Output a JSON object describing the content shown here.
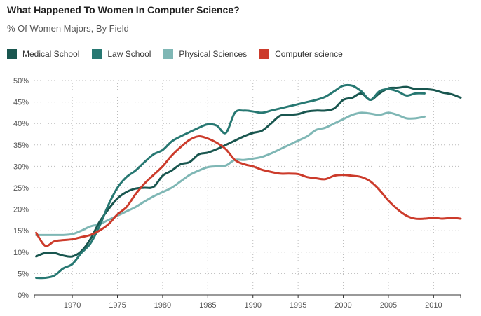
{
  "chart_data": {
    "type": "line",
    "title": "What Happened To Women In Computer Science?",
    "subtitle": "% Of Women Majors, By Field",
    "xlabel": "",
    "ylabel": "",
    "xlim": [
      1965.8,
      2013
    ],
    "ylim": [
      0,
      50
    ],
    "grid": true,
    "legend_position": "top-left",
    "x_ticks": [
      1970,
      1975,
      1980,
      1985,
      1990,
      1995,
      2000,
      2005,
      2010
    ],
    "y_ticks": [
      0,
      5,
      10,
      15,
      20,
      25,
      30,
      35,
      40,
      45,
      50
    ],
    "y_tick_labels": [
      "0%",
      "5%",
      "10%",
      "15%",
      "20%",
      "25%",
      "30%",
      "35%",
      "40%",
      "45%",
      "50%"
    ],
    "series": [
      {
        "name": "Medical School",
        "color": "#19564f",
        "x": [
          1966,
          1967,
          1968,
          1969,
          1970,
          1971,
          1972,
          1973,
          1974,
          1975,
          1976,
          1977,
          1978,
          1979,
          1980,
          1981,
          1982,
          1983,
          1984,
          1985,
          1986,
          1987,
          1988,
          1989,
          1990,
          1991,
          1992,
          1993,
          1994,
          1995,
          1996,
          1997,
          1998,
          1999,
          2000,
          2001,
          2002,
          2003,
          2004,
          2005,
          2006,
          2007,
          2008,
          2009,
          2010,
          2011,
          2012,
          2013
        ],
        "values": [
          9.0,
          9.8,
          9.8,
          9.2,
          9.0,
          10.2,
          13.0,
          17.0,
          20.0,
          22.5,
          24.0,
          24.8,
          25.0,
          25.2,
          27.8,
          29.0,
          30.5,
          31.0,
          32.8,
          33.2,
          34.0,
          35.0,
          36.0,
          37.0,
          37.8,
          38.3,
          40.0,
          41.8,
          42.0,
          42.2,
          42.8,
          43.0,
          43.0,
          43.5,
          45.5,
          46.0,
          47.0,
          45.5,
          47.0,
          48.2,
          48.3,
          48.5,
          48.0,
          48.0,
          47.8,
          47.2,
          46.8,
          46.0
        ]
      },
      {
        "name": "Law School",
        "color": "#277872",
        "x": [
          1966,
          1967,
          1968,
          1969,
          1970,
          1971,
          1972,
          1973,
          1974,
          1975,
          1976,
          1977,
          1978,
          1979,
          1980,
          1981,
          1982,
          1983,
          1984,
          1985,
          1986,
          1987,
          1988,
          1989,
          1990,
          1991,
          1992,
          1993,
          1994,
          1995,
          1996,
          1997,
          1998,
          1999,
          2000,
          2001,
          2002,
          2003,
          2004,
          2005,
          2006,
          2007,
          2008,
          2009
        ],
        "values": [
          4.0,
          4.0,
          4.5,
          6.2,
          7.2,
          9.8,
          12.0,
          16.0,
          21.0,
          25.0,
          27.5,
          29.0,
          31.0,
          32.8,
          33.8,
          35.8,
          37.0,
          38.0,
          39.0,
          39.8,
          39.5,
          37.8,
          42.5,
          43.0,
          42.8,
          42.5,
          43.0,
          43.5,
          44.0,
          44.5,
          45.0,
          45.5,
          46.2,
          47.5,
          48.8,
          48.8,
          47.5,
          45.5,
          47.5,
          48.0,
          47.5,
          46.5,
          47.0,
          47.0
        ]
      },
      {
        "name": "Physical Sciences",
        "color": "#7fb7b5",
        "x": [
          1966,
          1967,
          1968,
          1969,
          1970,
          1971,
          1972,
          1973,
          1974,
          1975,
          1976,
          1977,
          1978,
          1979,
          1980,
          1981,
          1982,
          1983,
          1984,
          1985,
          1986,
          1987,
          1988,
          1989,
          1990,
          1991,
          1992,
          1993,
          1994,
          1995,
          1996,
          1997,
          1998,
          1999,
          2000,
          2001,
          2002,
          2003,
          2004,
          2005,
          2006,
          2007,
          2008,
          2009
        ],
        "values": [
          14.0,
          14.0,
          14.0,
          14.0,
          14.2,
          15.0,
          16.0,
          16.5,
          17.5,
          18.5,
          19.5,
          20.5,
          21.8,
          23.0,
          24.0,
          25.0,
          26.5,
          28.0,
          29.0,
          29.8,
          30.0,
          30.2,
          31.5,
          31.5,
          31.8,
          32.2,
          33.0,
          34.0,
          35.0,
          36.0,
          37.0,
          38.5,
          39.0,
          40.0,
          41.0,
          42.0,
          42.5,
          42.3,
          42.0,
          42.5,
          42.0,
          41.2,
          41.2,
          41.6
        ]
      },
      {
        "name": "Computer science",
        "color": "#cc3b2b",
        "x": [
          1966,
          1967,
          1968,
          1969,
          1970,
          1971,
          1972,
          1973,
          1974,
          1975,
          1976,
          1977,
          1978,
          1979,
          1980,
          1981,
          1982,
          1983,
          1984,
          1985,
          1986,
          1987,
          1988,
          1989,
          1990,
          1991,
          1992,
          1993,
          1994,
          1995,
          1996,
          1997,
          1998,
          1999,
          2000,
          2001,
          2002,
          2003,
          2004,
          2005,
          2006,
          2007,
          2008,
          2009,
          2010,
          2011,
          2012,
          2013
        ],
        "values": [
          14.5,
          11.5,
          12.5,
          12.8,
          13.0,
          13.5,
          14.0,
          15.0,
          16.5,
          18.8,
          20.5,
          23.5,
          26.0,
          28.0,
          30.0,
          32.5,
          34.5,
          36.2,
          37.0,
          36.5,
          35.5,
          34.0,
          31.5,
          30.5,
          30.0,
          29.2,
          28.7,
          28.3,
          28.3,
          28.2,
          27.5,
          27.2,
          27.0,
          27.8,
          28.0,
          27.8,
          27.5,
          26.5,
          24.5,
          22.0,
          20.0,
          18.5,
          17.8,
          17.8,
          18.0,
          17.8,
          18.0,
          17.8
        ]
      }
    ]
  }
}
